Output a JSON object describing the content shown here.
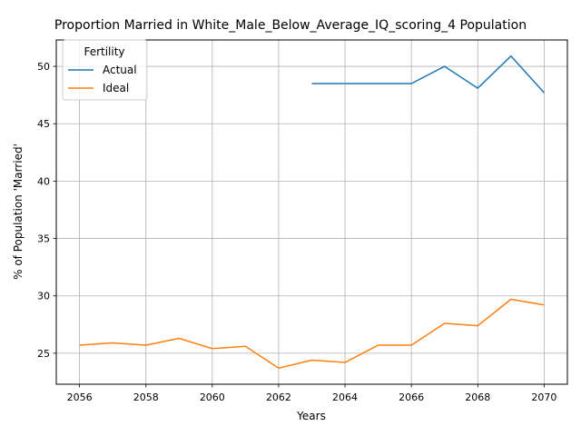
{
  "chart_data": {
    "type": "line",
    "title": "Proportion Married in White_Male_Below_Average_IQ_scoring_4 Population",
    "xlabel": "Years",
    "ylabel": "% of Population 'Married'",
    "xlim": [
      2055.3,
      2070.7
    ],
    "ylim": [
      22.3,
      52.3
    ],
    "xticks": [
      2056,
      2058,
      2060,
      2062,
      2064,
      2066,
      2068,
      2070
    ],
    "yticks": [
      25,
      30,
      35,
      40,
      45,
      50
    ],
    "grid": true,
    "legend": {
      "title": "Fertility",
      "position": "upper-left"
    },
    "series": [
      {
        "name": "Actual",
        "color": "#1f77b4",
        "x": [
          2063,
          2064,
          2065,
          2066,
          2067,
          2068,
          2069,
          2070
        ],
        "y": [
          48.5,
          48.5,
          48.5,
          48.5,
          50.0,
          48.1,
          50.9,
          47.7
        ]
      },
      {
        "name": "Ideal",
        "color": "#ff7f0e",
        "x": [
          2056,
          2057,
          2058,
          2059,
          2060,
          2061,
          2062,
          2063,
          2064,
          2065,
          2066,
          2067,
          2068,
          2069,
          2070
        ],
        "y": [
          25.7,
          25.9,
          25.7,
          26.3,
          25.4,
          25.6,
          23.7,
          24.4,
          24.2,
          25.7,
          25.7,
          27.6,
          27.4,
          29.7,
          29.2
        ]
      }
    ]
  }
}
